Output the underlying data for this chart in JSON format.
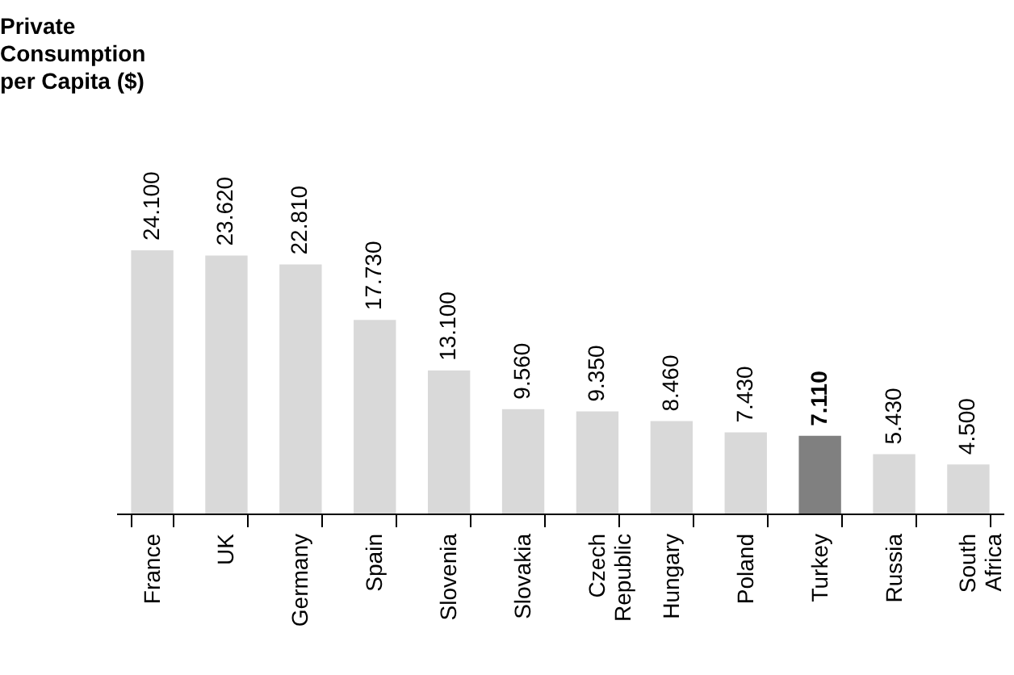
{
  "chart_data": {
    "type": "bar",
    "title": "Private Consumption per Capita ($)",
    "categories": [
      "France",
      "UK",
      "Germany",
      "Spain",
      "Slovenia",
      "Slovakia",
      "Czech Republic",
      "Hungary",
      "Poland",
      "Turkey",
      "Russia",
      "South Africa"
    ],
    "values": [
      24100,
      23620,
      22810,
      17730,
      13100,
      9560,
      9350,
      8460,
      7430,
      7110,
      5430,
      4500
    ],
    "value_labels": [
      "24.100",
      "23.620",
      "22.810",
      "17.730",
      "13.100",
      "9.560",
      "9.350",
      "8.460",
      "7.430",
      "7.110",
      "5.430",
      "4.500"
    ],
    "colors": [
      "#d9d9d9",
      "#d9d9d9",
      "#d9d9d9",
      "#d9d9d9",
      "#d9d9d9",
      "#d9d9d9",
      "#d9d9d9",
      "#d9d9d9",
      "#d9d9d9",
      "#808080",
      "#d9d9d9",
      "#d9d9d9"
    ],
    "grid": false
  }
}
